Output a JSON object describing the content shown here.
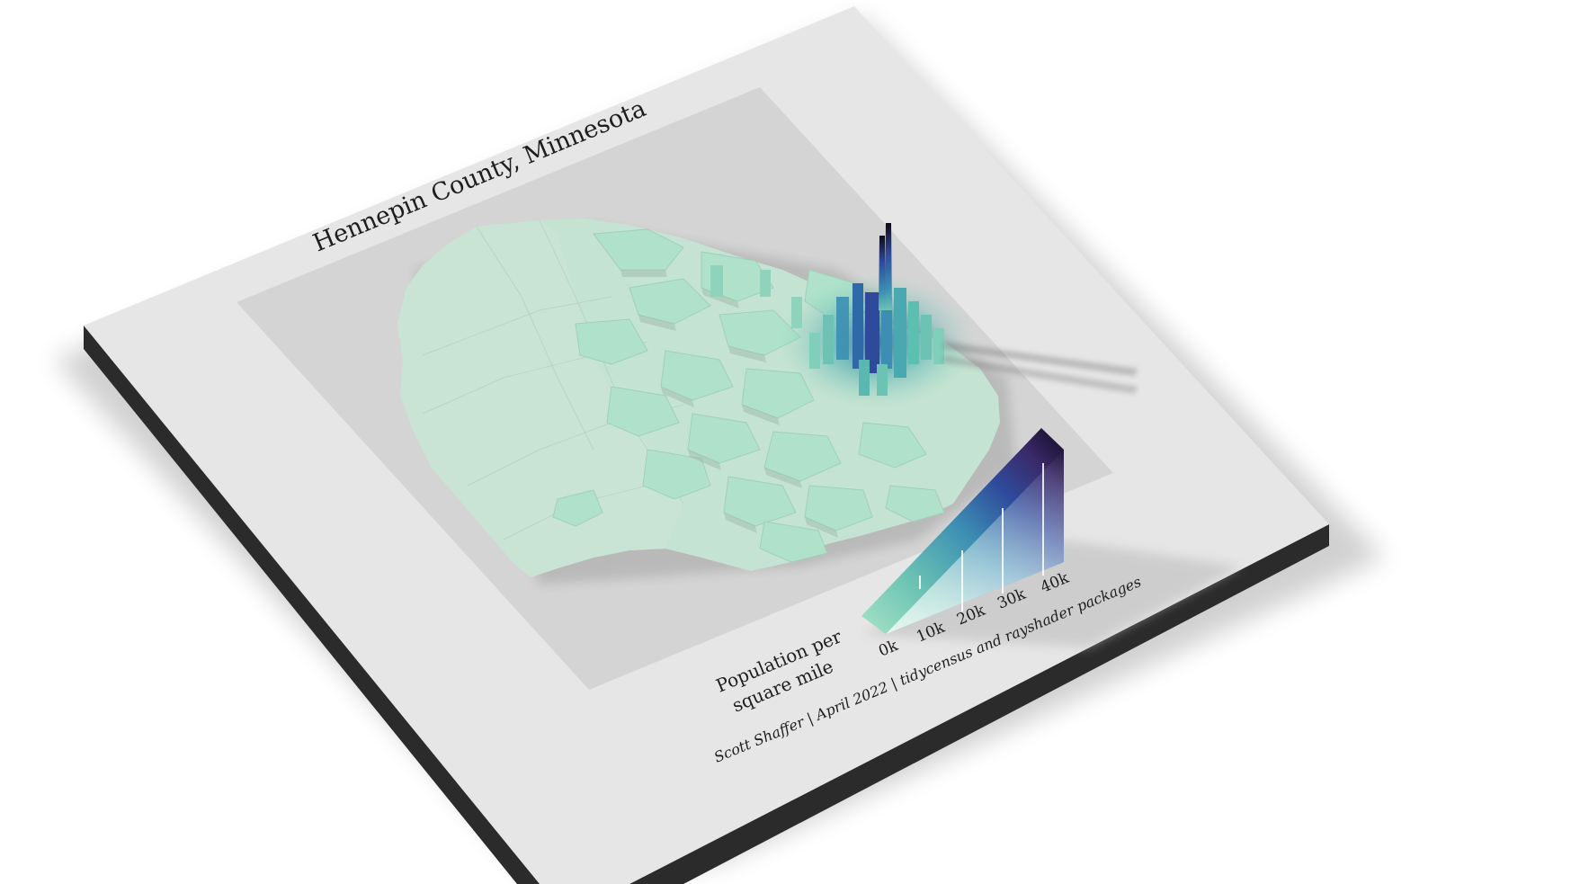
{
  "map": {
    "title": "Hennepin County, Minnesota",
    "legend": {
      "title_line1": "Population per",
      "title_line2": "square mile",
      "ticks": [
        "0k",
        "10k",
        "20k",
        "30k",
        "40k"
      ],
      "gradient_colors": [
        "#a6e3c6",
        "#6cc3b3",
        "#3c8fb3",
        "#2f4a9b",
        "#3a2a6a",
        "#120b1f"
      ]
    },
    "caption_author": "Scott Shaffer | April 2022 | ",
    "caption_tools": "tidycensus and rayshader packages",
    "colors": {
      "board_top": "#e6e6e6",
      "board_side": "#2b2b2b",
      "inner_panel": "#d4d4d4",
      "map_low": "#c5e3d2",
      "map_mid": "#a6e3c6",
      "map_high": "#2f4a9b"
    }
  }
}
